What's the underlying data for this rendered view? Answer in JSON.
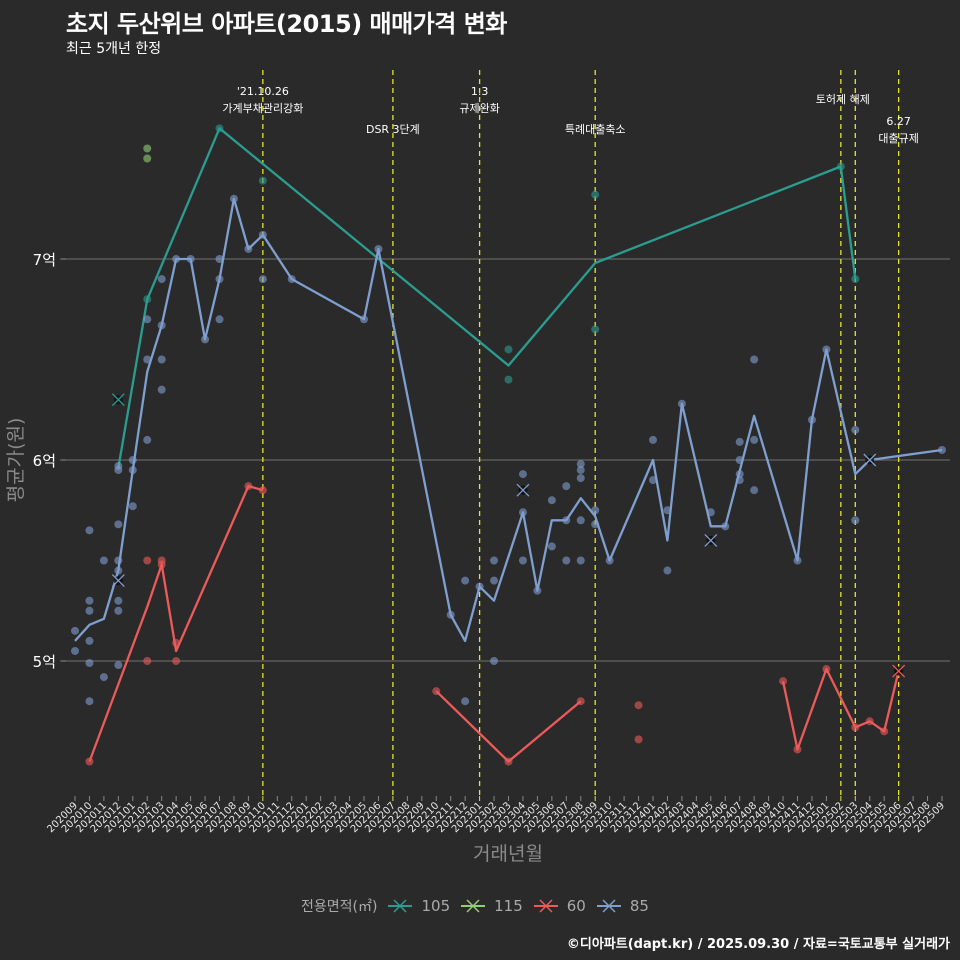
{
  "header": {
    "title": "초지 두산위브 아파트(2015) 매매가격 변화",
    "subtitle": "최근 5개년 한정"
  },
  "footer": "©디아파트(dapt.kr) / 2025.09.30 / 자료=국토교통부 실거래가",
  "legend": {
    "title": "전용면적(㎡)",
    "items": [
      {
        "label": "105",
        "color": "#2a9d8f"
      },
      {
        "label": "115",
        "color": "#8fd16f"
      },
      {
        "label": "60",
        "color": "#ec5a5a"
      },
      {
        "label": "85",
        "color": "#7f9fcf"
      }
    ]
  },
  "chart_data": {
    "type": "line",
    "title": "초지 두산위브 아파트(2015) 매매가격 변화",
    "subtitle": "최근 5개년 한정",
    "xlabel": "거래년월",
    "ylabel": "평균가(원)",
    "ylim": [
      4.4,
      7.95
    ],
    "yticks": [
      {
        "value": 5,
        "label": "5억"
      },
      {
        "value": 6,
        "label": "6억"
      },
      {
        "value": 7,
        "label": "7억"
      }
    ],
    "grid": true,
    "legend_position": "bottom",
    "x": [
      "202009",
      "202010",
      "202011",
      "202012",
      "202101",
      "202102",
      "202103",
      "202104",
      "202105",
      "202106",
      "202107",
      "202108",
      "202109",
      "202110",
      "202111",
      "202112",
      "202201",
      "202202",
      "202203",
      "202204",
      "202205",
      "202206",
      "202207",
      "202208",
      "202209",
      "202210",
      "202211",
      "202212",
      "202301",
      "202302",
      "202303",
      "202304",
      "202305",
      "202306",
      "202307",
      "202308",
      "202309",
      "202310",
      "202311",
      "202312",
      "202401",
      "202402",
      "202403",
      "202404",
      "202405",
      "202406",
      "202407",
      "202408",
      "202409",
      "202410",
      "202411",
      "202412",
      "202501",
      "202502",
      "202503",
      "202504",
      "202505",
      "202506",
      "202507",
      "202508",
      "202509"
    ],
    "events": [
      {
        "month": "202110",
        "label": "'21.10.26\n가계부채관리강화",
        "row": 0
      },
      {
        "month": "202207",
        "label": "DSR 3단계",
        "row": 2
      },
      {
        "month": "202301",
        "label": "1.3\n규제완화",
        "row": 0
      },
      {
        "month": "202309",
        "label": "특례대출축소",
        "row": 2
      },
      {
        "month": "202502",
        "label": "토허제 해제",
        "row": 1
      },
      {
        "month": "202503",
        "label": "",
        "row": 1
      },
      {
        "month": "202506",
        "label": "6.27\n대출규제",
        "row": 3
      }
    ],
    "series": [
      {
        "name": "105",
        "color": "#2a9d8f",
        "line": [
          [
            "202012",
            5.96
          ],
          [
            "202102",
            6.8
          ],
          [
            "202107",
            7.65
          ],
          [
            "202303",
            6.47
          ],
          [
            "202309",
            6.98
          ],
          [
            "202502",
            7.46
          ],
          [
            "202503",
            6.9
          ]
        ],
        "points": [
          [
            "202012",
            6.3
          ],
          [
            "202102",
            6.8
          ],
          [
            "202107",
            7.65
          ],
          [
            "202110",
            7.39
          ],
          [
            "202303",
            6.55
          ],
          [
            "202303",
            6.4
          ],
          [
            "202309",
            7.32
          ],
          [
            "202309",
            6.65
          ],
          [
            "202502",
            7.46
          ],
          [
            "202503",
            6.9
          ]
        ],
        "markers_x": [
          [
            "202012",
            6.3
          ]
        ]
      },
      {
        "name": "115",
        "color": "#8fd16f",
        "line": [],
        "points": [
          [
            "202102",
            7.55
          ],
          [
            "202102",
            7.5
          ]
        ],
        "markers_x": []
      },
      {
        "name": "60",
        "color": "#ec5a5a",
        "line_segments": [
          [
            [
              "202010",
              4.5
            ],
            [
              "202102",
              5.27
            ],
            [
              "202103",
              5.48
            ],
            [
              "202104",
              5.05
            ],
            [
              "202109",
              5.87
            ],
            [
              "202110",
              5.85
            ]
          ],
          [
            [
              "202210",
              4.85
            ],
            [
              "202303",
              4.5
            ],
            [
              "202308",
              4.8
            ]
          ],
          [
            [
              "202410",
              4.9
            ],
            [
              "202411",
              4.56
            ],
            [
              "202501",
              4.96
            ],
            [
              "202503",
              4.67
            ],
            [
              "202504",
              4.7
            ],
            [
              "202505",
              4.65
            ],
            [
              "202506",
              4.95
            ]
          ]
        ],
        "points": [
          [
            "202010",
            4.5
          ],
          [
            "202102",
            5.5
          ],
          [
            "202103",
            5.5
          ],
          [
            "202103",
            5.48
          ],
          [
            "202102",
            5.0
          ],
          [
            "202104",
            5.0
          ],
          [
            "202104",
            5.09
          ],
          [
            "202109",
            5.87
          ],
          [
            "202110",
            5.85
          ],
          [
            "202210",
            4.85
          ],
          [
            "202303",
            4.5
          ],
          [
            "202308",
            4.8
          ],
          [
            "202312",
            4.78
          ],
          [
            "202312",
            4.61
          ],
          [
            "202410",
            4.9
          ],
          [
            "202411",
            4.56
          ],
          [
            "202501",
            4.96
          ],
          [
            "202503",
            4.67
          ],
          [
            "202504",
            4.7
          ],
          [
            "202505",
            4.65
          ]
        ],
        "markers_x": [
          [
            "202506",
            4.95
          ]
        ]
      },
      {
        "name": "85",
        "color": "#7f9fcf",
        "line": [
          [
            "202009",
            5.1
          ],
          [
            "202010",
            5.18
          ],
          [
            "202011",
            5.21
          ],
          [
            "202012",
            5.45
          ],
          [
            "202101",
            5.95
          ],
          [
            "202102",
            6.44
          ],
          [
            "202103",
            6.67
          ],
          [
            "202104",
            7.0
          ],
          [
            "202105",
            7.0
          ],
          [
            "202106",
            6.6
          ],
          [
            "202107",
            6.9
          ],
          [
            "202108",
            7.3
          ],
          [
            "202109",
            7.05
          ],
          [
            "202110",
            7.12
          ],
          [
            "202112",
            6.9
          ],
          [
            "202205",
            6.7
          ],
          [
            "202206",
            7.05
          ],
          [
            "202211",
            5.23
          ],
          [
            "202212",
            5.1
          ],
          [
            "202301",
            5.37
          ],
          [
            "202302",
            5.3
          ],
          [
            "202304",
            5.74
          ],
          [
            "202305",
            5.35
          ],
          [
            "202306",
            5.7
          ],
          [
            "202307",
            5.7
          ],
          [
            "202308",
            5.81
          ],
          [
            "202309",
            5.72
          ],
          [
            "202310",
            5.5
          ],
          [
            "202401",
            6.0
          ],
          [
            "202402",
            5.6
          ],
          [
            "202403",
            6.28
          ],
          [
            "202405",
            5.67
          ],
          [
            "202406",
            5.67
          ],
          [
            "202408",
            6.22
          ],
          [
            "202411",
            5.5
          ],
          [
            "202412",
            6.2
          ],
          [
            "202501",
            6.55
          ],
          [
            "202503",
            5.93
          ],
          [
            "202504",
            6.0
          ],
          [
            "202509",
            6.05
          ]
        ],
        "points": [
          [
            "202009",
            5.15
          ],
          [
            "202009",
            5.05
          ],
          [
            "202010",
            5.65
          ],
          [
            "202010",
            5.3
          ],
          [
            "202010",
            5.25
          ],
          [
            "202010",
            5.1
          ],
          [
            "202010",
            4.99
          ],
          [
            "202010",
            4.8
          ],
          [
            "202011",
            5.5
          ],
          [
            "202011",
            4.92
          ],
          [
            "202012",
            5.68
          ],
          [
            "202012",
            5.5
          ],
          [
            "202012",
            5.45
          ],
          [
            "202012",
            5.3
          ],
          [
            "202012",
            5.25
          ],
          [
            "202012",
            4.98
          ],
          [
            "202012",
            5.95
          ],
          [
            "202012",
            5.97
          ],
          [
            "202101",
            6.0
          ],
          [
            "202101",
            5.95
          ],
          [
            "202101",
            5.77
          ],
          [
            "202102",
            6.7
          ],
          [
            "202102",
            6.5
          ],
          [
            "202102",
            6.1
          ],
          [
            "202103",
            6.9
          ],
          [
            "202103",
            6.67
          ],
          [
            "202103",
            6.5
          ],
          [
            "202103",
            6.35
          ],
          [
            "202104",
            7.0
          ],
          [
            "202105",
            7.0
          ],
          [
            "202106",
            6.6
          ],
          [
            "202107",
            7.0
          ],
          [
            "202107",
            6.9
          ],
          [
            "202107",
            6.7
          ],
          [
            "202108",
            7.3
          ],
          [
            "202109",
            7.05
          ],
          [
            "202110",
            7.12
          ],
          [
            "202110",
            6.9
          ],
          [
            "202112",
            6.9
          ],
          [
            "202205",
            6.7
          ],
          [
            "202206",
            7.05
          ],
          [
            "202211",
            5.23
          ],
          [
            "202212",
            5.4
          ],
          [
            "202212",
            4.8
          ],
          [
            "202301",
            5.37
          ],
          [
            "202302",
            5.5
          ],
          [
            "202302",
            5.4
          ],
          [
            "202302",
            5.0
          ],
          [
            "202304",
            5.93
          ],
          [
            "202304",
            5.74
          ],
          [
            "202304",
            5.5
          ],
          [
            "202305",
            5.35
          ],
          [
            "202306",
            5.8
          ],
          [
            "202306",
            5.57
          ],
          [
            "202307",
            5.87
          ],
          [
            "202307",
            5.7
          ],
          [
            "202307",
            5.5
          ],
          [
            "202308",
            5.98
          ],
          [
            "202308",
            5.95
          ],
          [
            "202308",
            5.91
          ],
          [
            "202308",
            5.7
          ],
          [
            "202308",
            5.5
          ],
          [
            "202309",
            5.75
          ],
          [
            "202309",
            5.68
          ],
          [
            "202310",
            5.5
          ],
          [
            "202401",
            6.1
          ],
          [
            "202401",
            5.9
          ],
          [
            "202402",
            5.75
          ],
          [
            "202402",
            5.45
          ],
          [
            "202403",
            6.28
          ],
          [
            "202405",
            5.74
          ],
          [
            "202406",
            5.67
          ],
          [
            "202407",
            6.09
          ],
          [
            "202407",
            6.0
          ],
          [
            "202407",
            5.93
          ],
          [
            "202407",
            5.9
          ],
          [
            "202408",
            6.5
          ],
          [
            "202408",
            6.1
          ],
          [
            "202408",
            5.85
          ],
          [
            "202411",
            5.5
          ],
          [
            "202412",
            6.2
          ],
          [
            "202501",
            6.55
          ],
          [
            "202503",
            6.15
          ],
          [
            "202503",
            5.7
          ],
          [
            "202509",
            6.05
          ]
        ],
        "markers_x": [
          [
            "202012",
            5.4
          ],
          [
            "202304",
            5.85
          ],
          [
            "202405",
            5.6
          ],
          [
            "202504",
            6.0
          ]
        ]
      }
    ]
  }
}
